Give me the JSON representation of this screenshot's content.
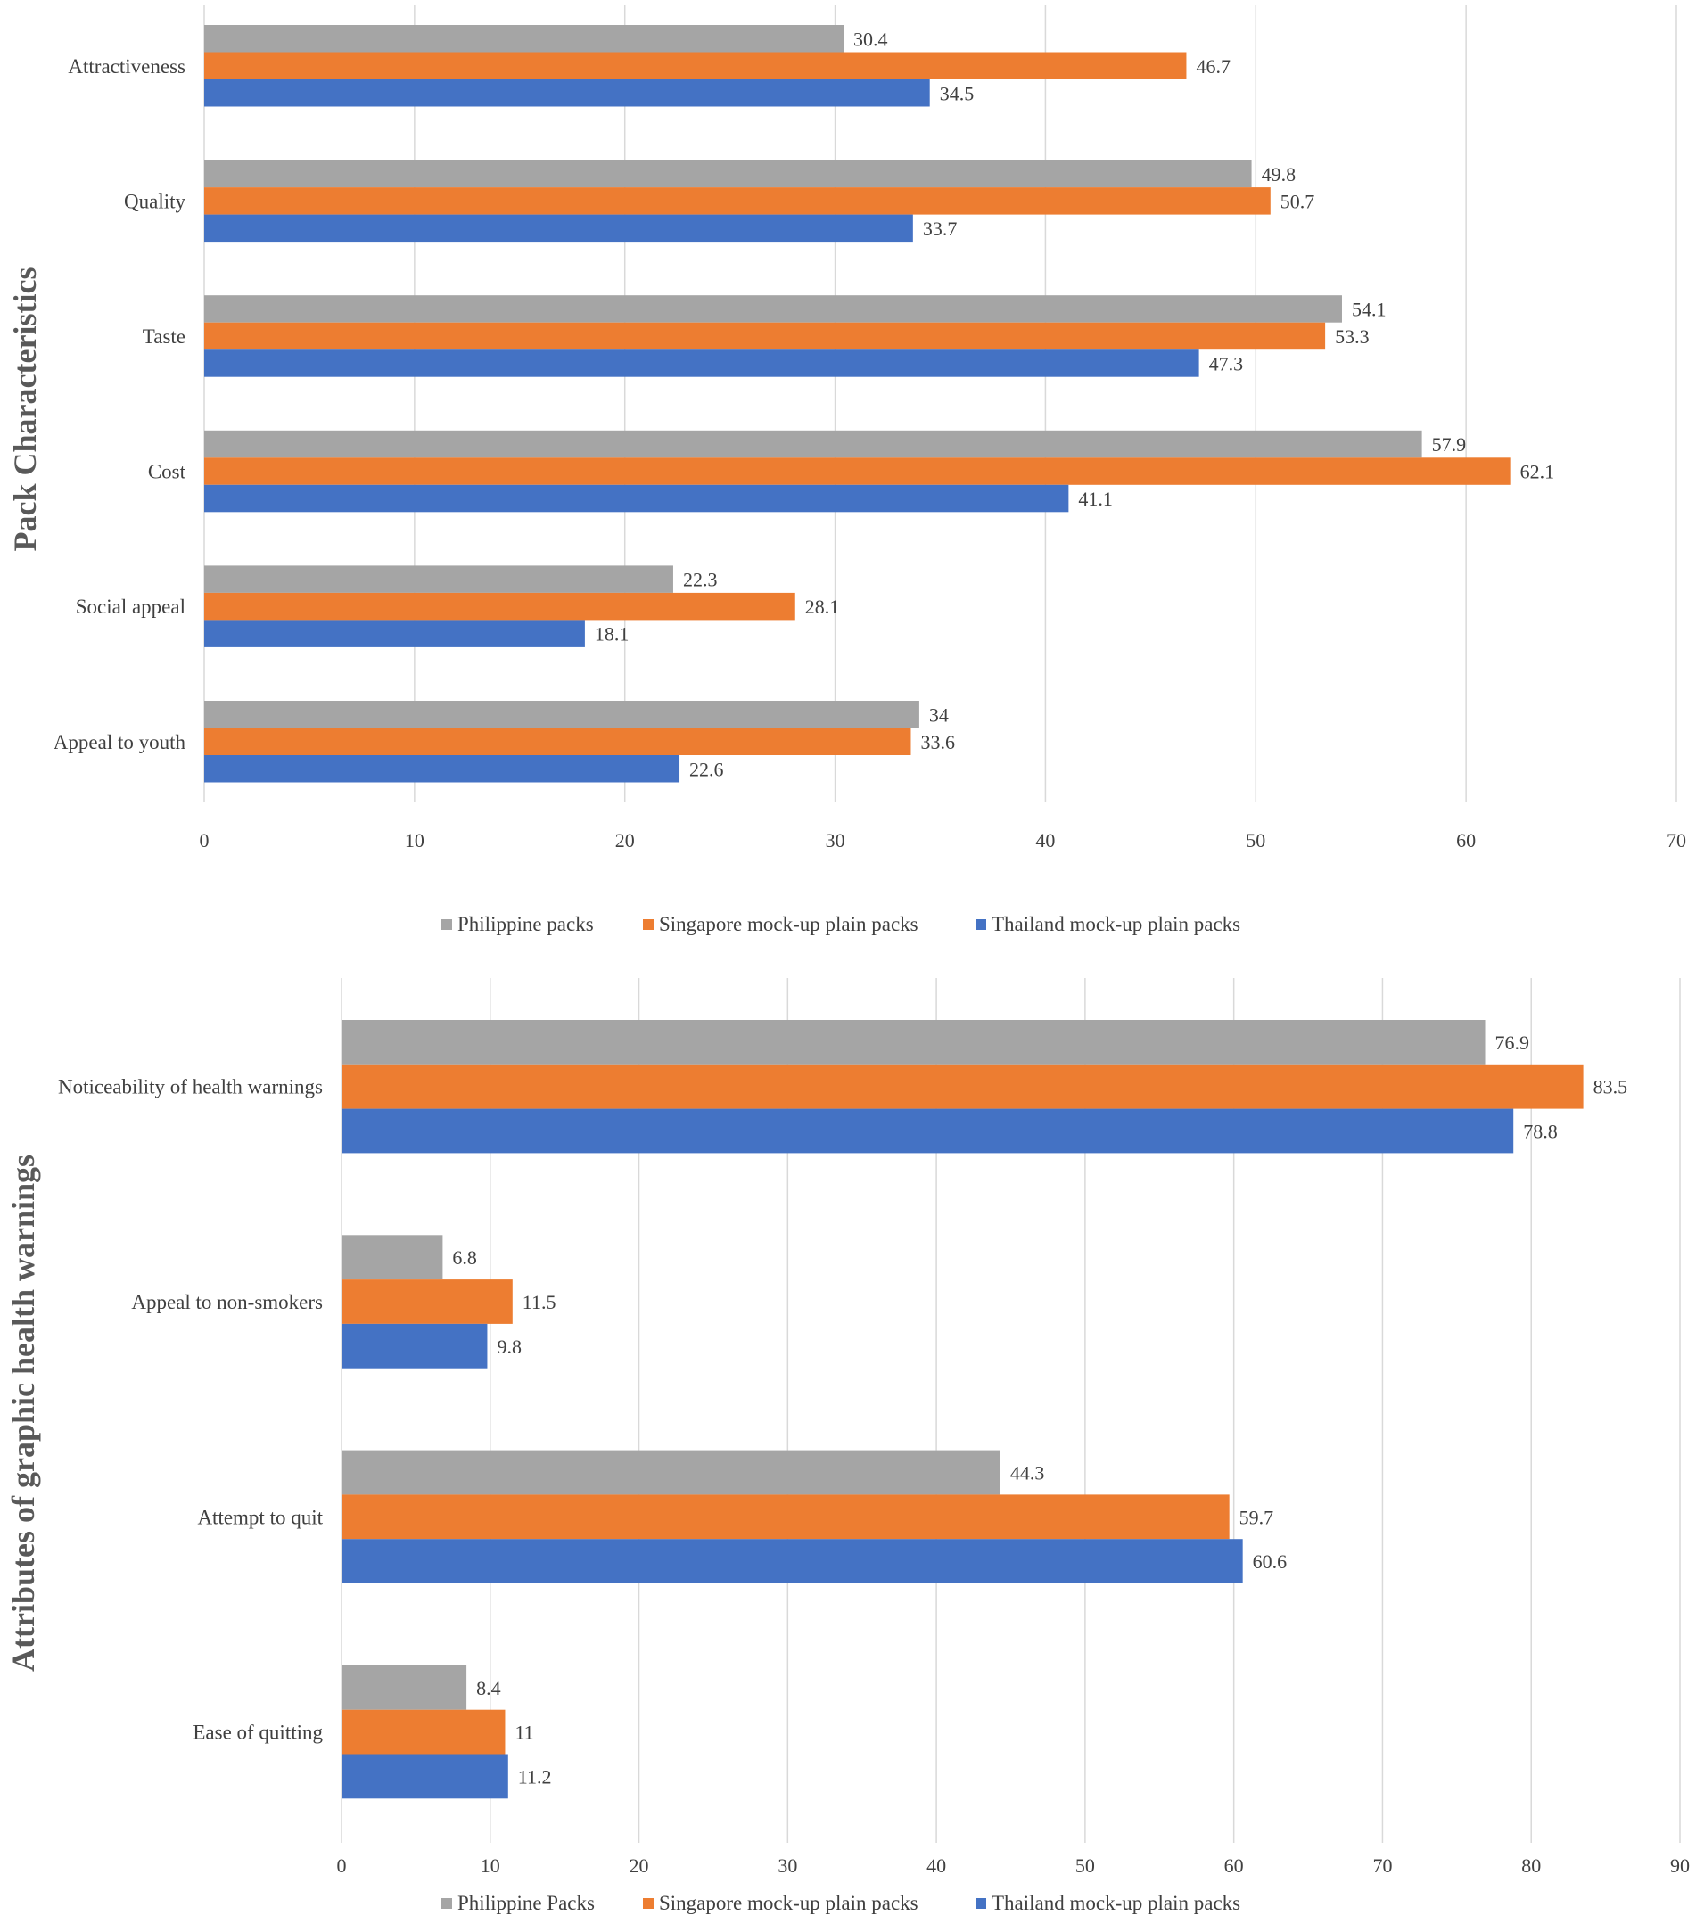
{
  "chart_data": [
    {
      "type": "bar",
      "orientation": "horizontal",
      "ylabel": "Pack Characteristics",
      "categories": [
        "Attractiveness",
        "Quality",
        "Taste",
        "Cost",
        "Social appeal",
        "Appeal to youth"
      ],
      "xlim": [
        0,
        70
      ],
      "xticks": [
        "0",
        "10",
        "20",
        "30",
        "40",
        "50",
        "60",
        "70"
      ],
      "grid": true,
      "legend_position": "bottom",
      "series": [
        {
          "name": "Philippine packs",
          "color": "#a5a5a5",
          "values": [
            30.4,
            49.8,
            54.1,
            57.9,
            22.3,
            34
          ],
          "labels": [
            "30.4",
            "49.8",
            "54.1",
            "57.9",
            "22.3",
            "34"
          ]
        },
        {
          "name": "Singapore mock-up plain packs",
          "color": "#ed7d31",
          "values": [
            46.7,
            50.7,
            53.3,
            62.1,
            28.1,
            33.6
          ],
          "labels": [
            "46.7",
            "50.7",
            "53.3",
            "62.1",
            "28.1",
            "33.6"
          ]
        },
        {
          "name": "Thailand mock-up plain packs",
          "color": "#4472c4",
          "values": [
            34.5,
            33.7,
            47.3,
            41.1,
            18.1,
            22.6
          ],
          "labels": [
            "34.5",
            "33.7",
            "47.3",
            "41.1",
            "18.1",
            "22.6"
          ]
        }
      ]
    },
    {
      "type": "bar",
      "orientation": "horizontal",
      "ylabel": "Attributes of graphic health warnings",
      "categories": [
        "Noticeability of health warnings",
        "Appeal to non-smokers",
        "Attempt to quit",
        "Ease of quitting"
      ],
      "xlim": [
        0,
        90
      ],
      "xticks": [
        "0",
        "10",
        "20",
        "30",
        "40",
        "50",
        "60",
        "70",
        "80",
        "90"
      ],
      "grid": true,
      "legend_position": "bottom",
      "series": [
        {
          "name": "Philippine Packs",
          "color": "#a5a5a5",
          "values": [
            76.9,
            6.8,
            44.3,
            8.4
          ],
          "labels": [
            "76.9",
            "6.8",
            "44.3",
            "8.4"
          ]
        },
        {
          "name": "Singapore mock-up plain packs",
          "color": "#ed7d31",
          "values": [
            83.5,
            11.5,
            59.7,
            11
          ],
          "labels": [
            "83.5",
            "11.5",
            "59.7",
            "11"
          ]
        },
        {
          "name": "Thailand mock-up plain packs",
          "color": "#4472c4",
          "values": [
            78.8,
            9.8,
            60.6,
            11.2
          ],
          "labels": [
            "78.8",
            "9.8",
            "60.6",
            "11.2"
          ]
        }
      ]
    }
  ]
}
